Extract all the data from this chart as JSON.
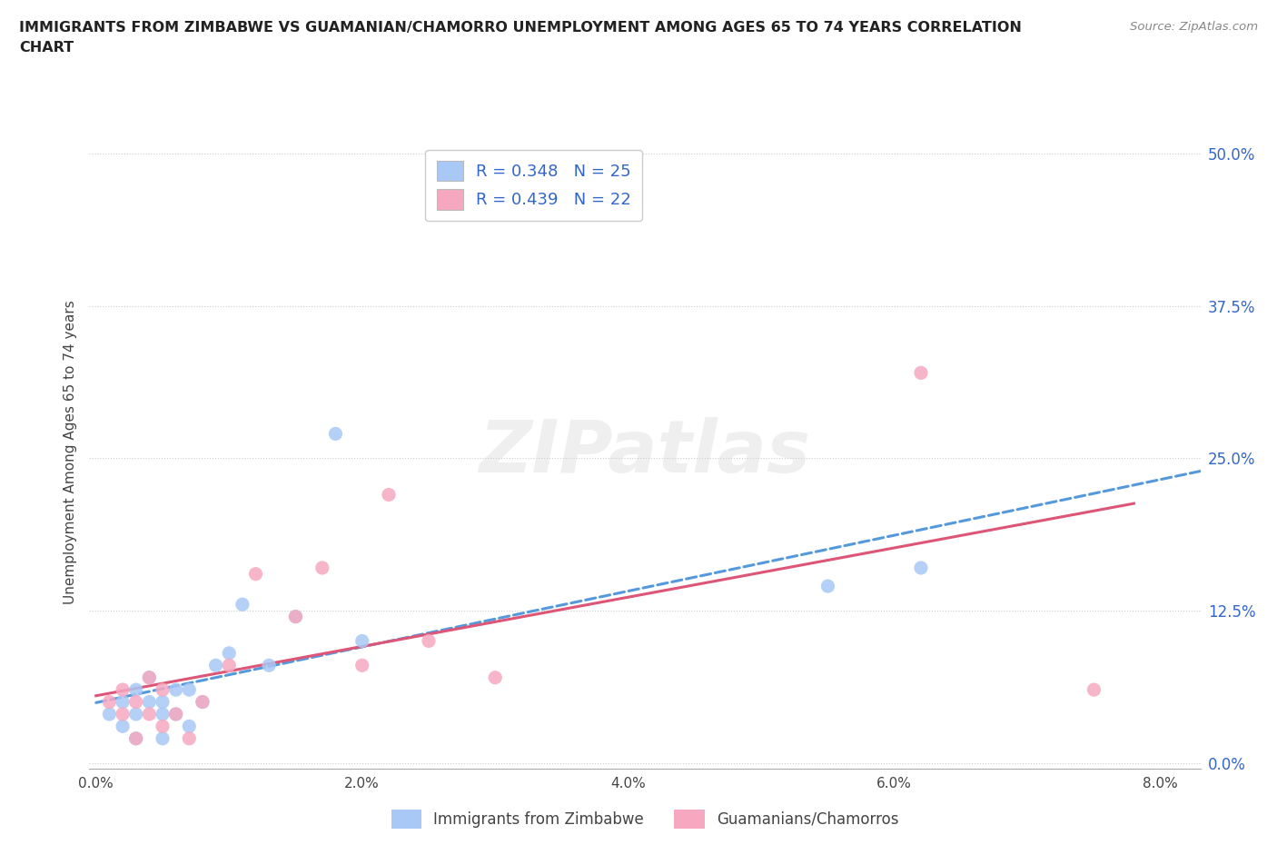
{
  "title_line1": "IMMIGRANTS FROM ZIMBABWE VS GUAMANIAN/CHAMORRO UNEMPLOYMENT AMONG AGES 65 TO 74 YEARS CORRELATION",
  "title_line2": "CHART",
  "source": "Source: ZipAtlas.com",
  "ylabel": "Unemployment Among Ages 65 to 74 years",
  "xlabel_ticks": [
    "0.0%",
    "2.0%",
    "4.0%",
    "6.0%",
    "8.0%"
  ],
  "xlabel_vals": [
    0.0,
    0.02,
    0.04,
    0.06,
    0.08
  ],
  "ylabel_ticks": [
    "0.0%",
    "12.5%",
    "25.0%",
    "37.5%",
    "50.0%"
  ],
  "ylabel_vals": [
    0.0,
    0.125,
    0.25,
    0.375,
    0.5
  ],
  "xlim": [
    -0.0005,
    0.083
  ],
  "ylim": [
    -0.005,
    0.515
  ],
  "R_zimbabwe": 0.348,
  "N_zimbabwe": 25,
  "R_guamanian": 0.439,
  "N_guamanian": 22,
  "zimbabwe_color": "#a8c8f5",
  "guamanian_color": "#f5a8c0",
  "line_zimbabwe_color": "#5599dd",
  "line_guamanian_color": "#dd5577",
  "legend_label_1": "Immigrants from Zimbabwe",
  "legend_label_2": "Guamanians/Chamorros",
  "zimbabwe_x": [
    0.001,
    0.002,
    0.002,
    0.003,
    0.003,
    0.003,
    0.004,
    0.004,
    0.005,
    0.005,
    0.005,
    0.006,
    0.006,
    0.007,
    0.007,
    0.008,
    0.009,
    0.01,
    0.011,
    0.013,
    0.015,
    0.018,
    0.02,
    0.055,
    0.062
  ],
  "zimbabwe_y": [
    0.04,
    0.05,
    0.03,
    0.06,
    0.04,
    0.02,
    0.05,
    0.07,
    0.05,
    0.02,
    0.04,
    0.06,
    0.04,
    0.06,
    0.03,
    0.05,
    0.08,
    0.09,
    0.13,
    0.08,
    0.12,
    0.27,
    0.1,
    0.145,
    0.16
  ],
  "guamanian_x": [
    0.001,
    0.002,
    0.002,
    0.003,
    0.003,
    0.004,
    0.004,
    0.005,
    0.005,
    0.006,
    0.007,
    0.008,
    0.01,
    0.012,
    0.015,
    0.017,
    0.02,
    0.022,
    0.025,
    0.03,
    0.062,
    0.075
  ],
  "guamanian_y": [
    0.05,
    0.04,
    0.06,
    0.02,
    0.05,
    0.04,
    0.07,
    0.03,
    0.06,
    0.04,
    0.02,
    0.05,
    0.08,
    0.155,
    0.12,
    0.16,
    0.08,
    0.22,
    0.1,
    0.07,
    0.32,
    0.06
  ],
  "line_zim_x0": 0.0,
  "line_zim_x1": 0.083,
  "line_gua_x0": 0.0,
  "line_gua_x1": 0.078
}
